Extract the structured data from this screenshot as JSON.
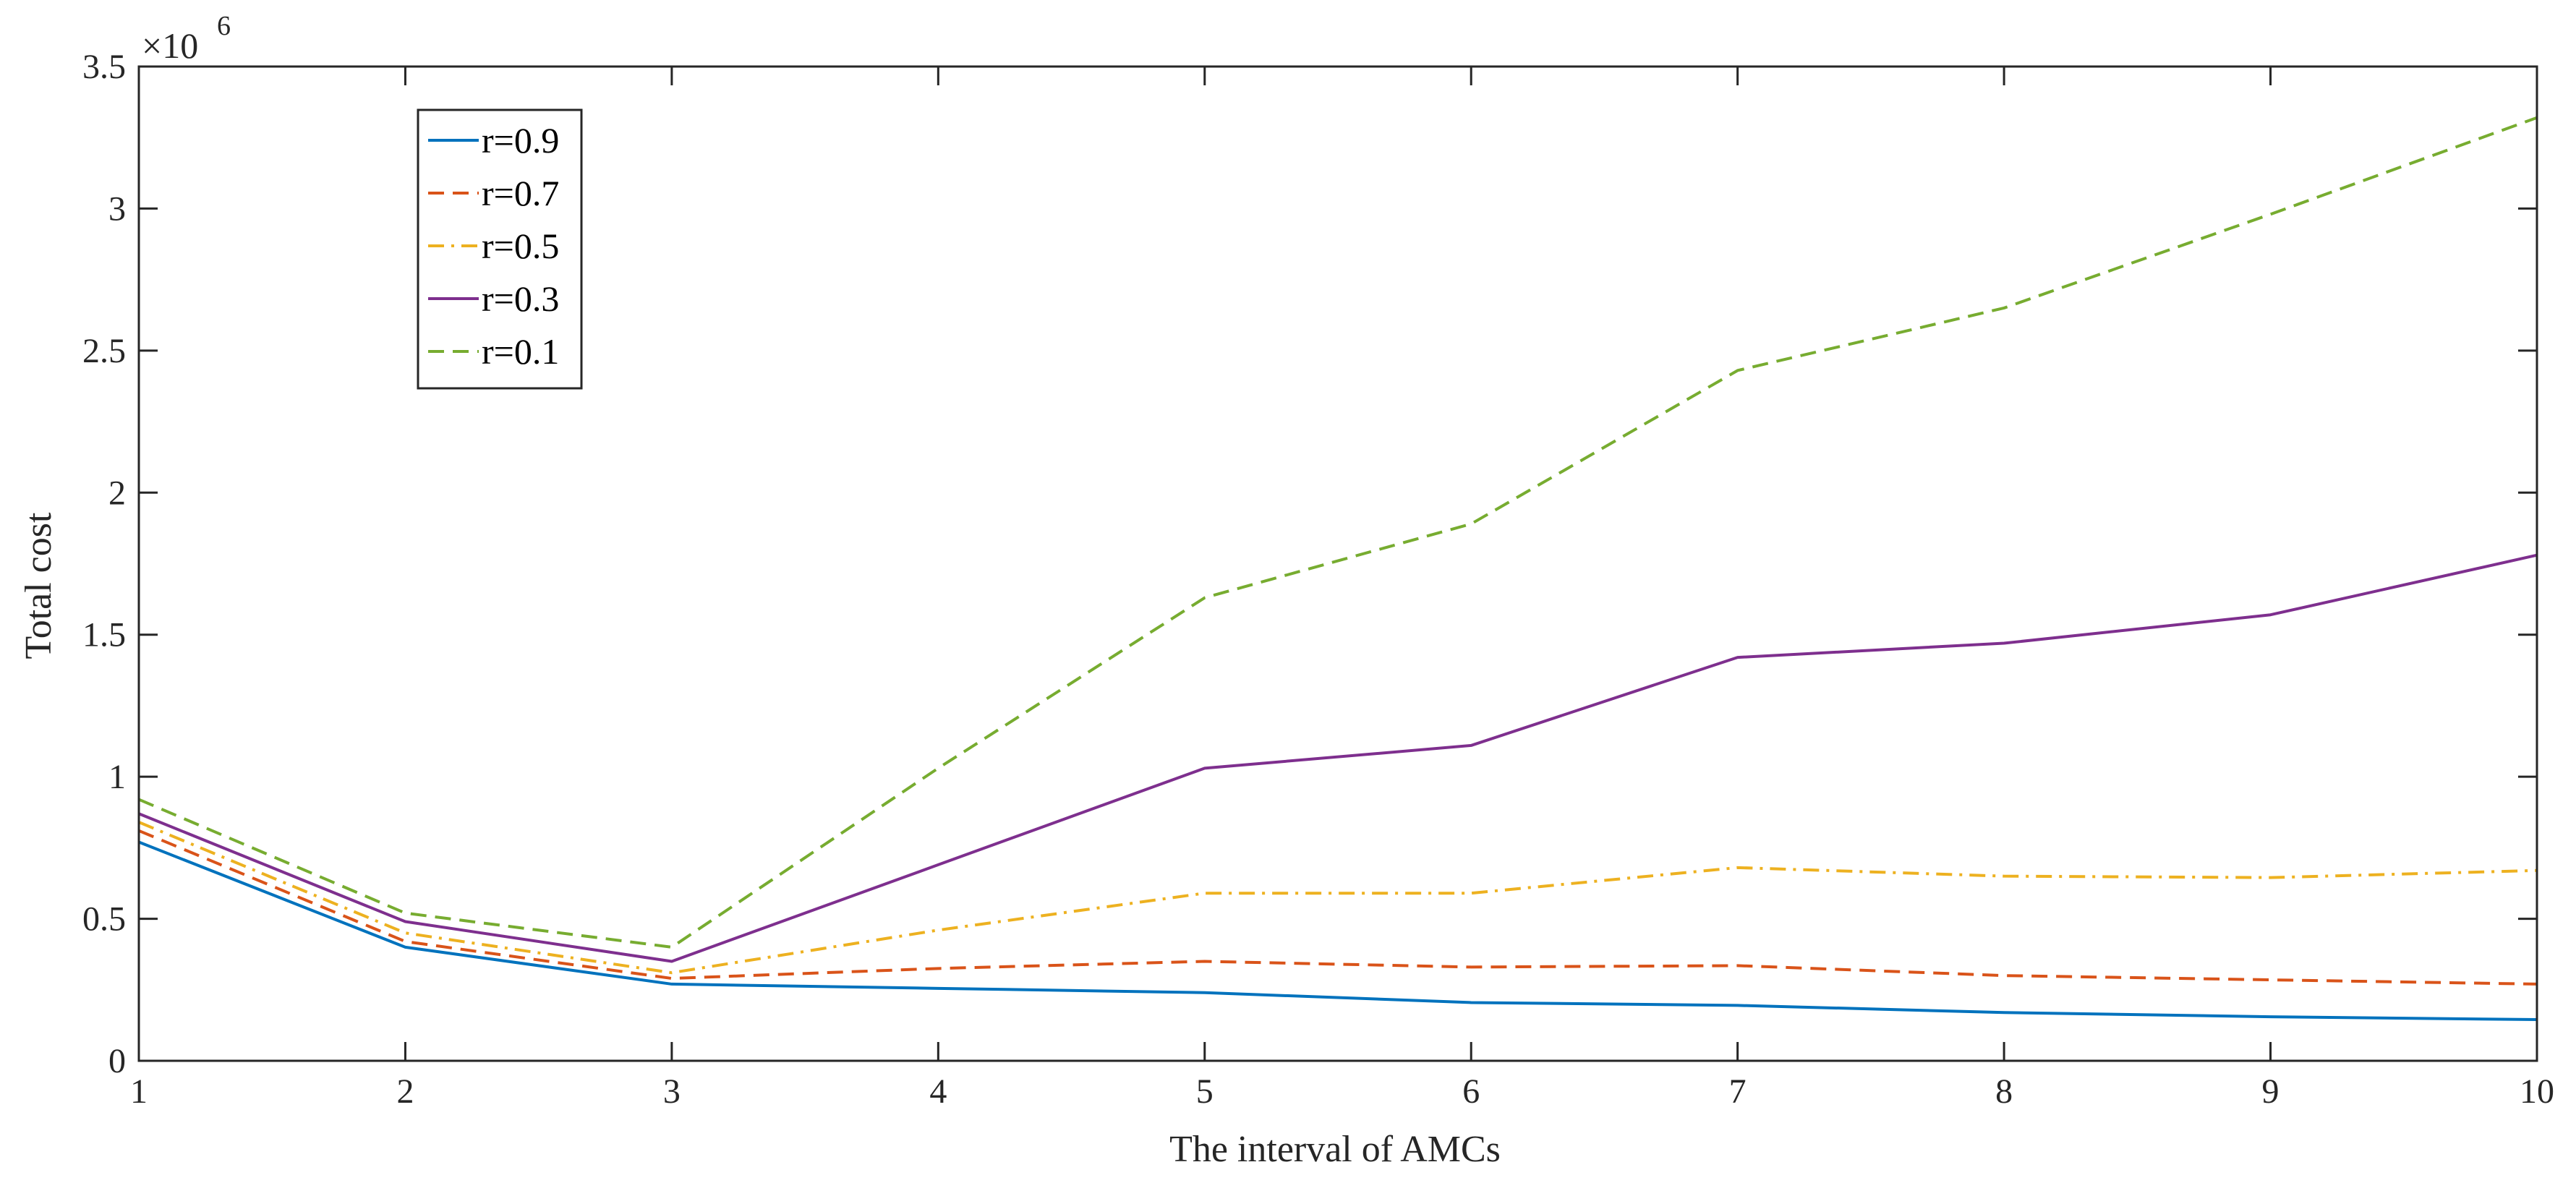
{
  "chart_data": {
    "type": "line",
    "title": "",
    "xlabel": "The interval of AMCs",
    "ylabel": "Total cost",
    "y_exponent": {
      "base": "×10",
      "power": "6"
    },
    "xlim": [
      1,
      10
    ],
    "ylim": [
      0,
      3.5
    ],
    "x_ticks": [
      "1",
      "2",
      "3",
      "4",
      "5",
      "6",
      "7",
      "8",
      "9",
      "10"
    ],
    "y_ticks": [
      "0",
      "0.5",
      "1",
      "1.5",
      "2",
      "2.5",
      "3",
      "3.5"
    ],
    "x": [
      1,
      2,
      3,
      4,
      5,
      6,
      7,
      8,
      9,
      10
    ],
    "legend_position": "top-left",
    "series": [
      {
        "name": "r=0.9",
        "color": "#0072BD",
        "dash": "solid",
        "values": [
          0.77,
          0.4,
          0.27,
          0.255,
          0.24,
          0.205,
          0.195,
          0.17,
          0.155,
          0.145
        ]
      },
      {
        "name": "r=0.7",
        "color": "#D95319",
        "dash": "dashed",
        "values": [
          0.81,
          0.42,
          0.29,
          0.325,
          0.35,
          0.33,
          0.335,
          0.3,
          0.285,
          0.27
        ]
      },
      {
        "name": "r=0.5",
        "color": "#EDB120",
        "dash": "dashdot",
        "values": [
          0.84,
          0.45,
          0.31,
          0.46,
          0.59,
          0.59,
          0.68,
          0.65,
          0.645,
          0.67
        ]
      },
      {
        "name": "r=0.3",
        "color": "#7E2F8E",
        "dash": "solid",
        "values": [
          0.87,
          0.49,
          0.35,
          0.69,
          1.03,
          1.11,
          1.42,
          1.47,
          1.57,
          1.78
        ]
      },
      {
        "name": "r=0.1",
        "color": "#77AC30",
        "dash": "dashed",
        "values": [
          0.92,
          0.52,
          0.4,
          1.03,
          1.63,
          1.89,
          2.43,
          2.65,
          2.98,
          3.32
        ]
      }
    ]
  }
}
